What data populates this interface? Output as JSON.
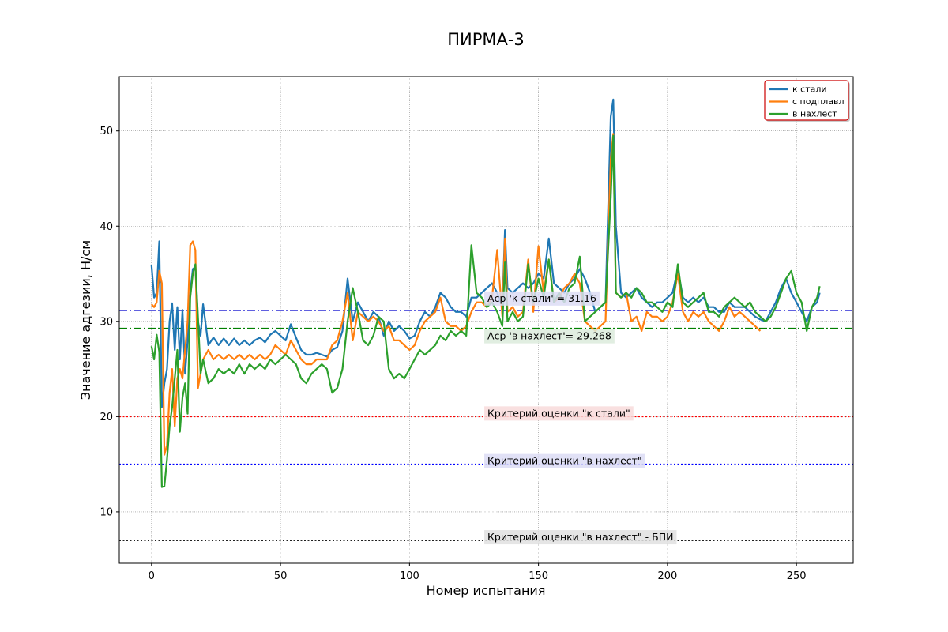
{
  "chart_data": {
    "type": "line",
    "title": "ПИРМА-3",
    "xlabel": "Номер испытания",
    "ylabel": "Значение адгезии, Н/см",
    "xlim": [
      -12.5,
      272
    ],
    "ylim": [
      4.6,
      55.7
    ],
    "xticks": [
      0,
      50,
      100,
      150,
      200,
      250
    ],
    "yticks": [
      10,
      20,
      30,
      40,
      50
    ],
    "grid": true,
    "legend_position": "upper right",
    "series": [
      {
        "name": "к стали",
        "color": "#1f77b4",
        "x": [
          0,
          1,
          2,
          3,
          4,
          5,
          6,
          7,
          8,
          9,
          10,
          11,
          12,
          13,
          14,
          15,
          16,
          17,
          18,
          19,
          20,
          22,
          24,
          26,
          28,
          30,
          32,
          34,
          36,
          38,
          40,
          42,
          44,
          46,
          48,
          50,
          52,
          54,
          56,
          58,
          60,
          62,
          64,
          66,
          68,
          70,
          72,
          74,
          76,
          78,
          80,
          82,
          84,
          86,
          88,
          90,
          92,
          94,
          96,
          98,
          100,
          102,
          104,
          106,
          108,
          110,
          112,
          114,
          116,
          118,
          120,
          122,
          124,
          126,
          128,
          130,
          132,
          134,
          136,
          137,
          138,
          140,
          142,
          144,
          146,
          148,
          150,
          152,
          154,
          156,
          158,
          160,
          162,
          164,
          166,
          168,
          170,
          172,
          174,
          176,
          178,
          179,
          180,
          182,
          184,
          186,
          188,
          190,
          192,
          194,
          196,
          198,
          200,
          202,
          204,
          206,
          208,
          210,
          212,
          214,
          216,
          218,
          220,
          222,
          224,
          226,
          228,
          230,
          232,
          234,
          236,
          238,
          240,
          242,
          244,
          246,
          248,
          250,
          252,
          254,
          256,
          258,
          259
        ],
        "y": [
          35.9,
          32.5,
          33.0,
          38.4,
          21.0,
          23.5,
          25.0,
          30.0,
          31.9,
          27.0,
          31.5,
          26.0,
          31.2,
          24.5,
          28.0,
          33.0,
          35.5,
          35.7,
          30.0,
          28.5,
          31.8,
          27.5,
          28.3,
          27.5,
          28.2,
          27.5,
          28.2,
          27.5,
          28.0,
          27.5,
          28.0,
          28.3,
          27.8,
          28.6,
          29.0,
          28.5,
          28.0,
          29.7,
          28.3,
          27.0,
          26.5,
          26.5,
          26.7,
          26.5,
          26.3,
          27.0,
          27.3,
          29.0,
          34.5,
          30.0,
          32.0,
          31.0,
          30.0,
          31.0,
          30.5,
          28.5,
          30.0,
          29.0,
          29.5,
          29.0,
          28.2,
          28.5,
          30.0,
          31.0,
          30.5,
          31.5,
          33.0,
          32.5,
          31.5,
          31.0,
          31.0,
          30.5,
          32.5,
          32.5,
          33.0,
          33.5,
          34.0,
          33.0,
          31.5,
          39.6,
          33.5,
          33.0,
          33.5,
          34.0,
          33.5,
          34.0,
          35.0,
          34.5,
          38.7,
          34.0,
          33.5,
          33.0,
          34.0,
          34.5,
          35.5,
          34.5,
          33.0,
          31.0,
          31.5,
          32.0,
          51.5,
          53.3,
          40.0,
          33.0,
          32.5,
          33.0,
          33.5,
          32.5,
          32.0,
          31.5,
          32.0,
          32.0,
          32.5,
          33.0,
          35.5,
          32.5,
          32.0,
          32.5,
          32.0,
          32.5,
          31.5,
          31.5,
          31.0,
          31.0,
          32.0,
          31.5,
          31.5,
          31.5,
          31.0,
          30.5,
          30.2,
          30.0,
          31.0,
          32.0,
          33.5,
          34.5,
          33.0,
          32.0,
          31.0,
          30.0,
          31.5,
          32.0,
          33.0
        ],
        "style": "solid"
      },
      {
        "name": "с подплавл",
        "color": "#ff7f0e",
        "x": [
          0,
          1,
          2,
          3,
          4,
          5,
          6,
          7,
          8,
          9,
          10,
          11,
          12,
          13,
          14,
          15,
          16,
          17,
          18,
          19,
          20,
          22,
          24,
          26,
          28,
          30,
          32,
          34,
          36,
          38,
          40,
          42,
          44,
          46,
          48,
          50,
          52,
          54,
          56,
          58,
          60,
          62,
          64,
          66,
          68,
          70,
          72,
          74,
          76,
          78,
          80,
          82,
          84,
          86,
          88,
          90,
          92,
          94,
          96,
          98,
          100,
          102,
          104,
          106,
          108,
          110,
          112,
          114,
          116,
          118,
          120,
          122,
          124,
          126,
          128,
          130,
          132,
          134,
          136,
          137,
          138,
          140,
          142,
          144,
          146,
          148,
          150,
          152,
          154,
          156,
          158,
          160,
          162,
          164,
          166,
          168,
          170,
          172,
          174,
          176,
          178,
          179,
          180,
          182,
          184,
          186,
          188,
          190,
          192,
          194,
          196,
          198,
          200,
          202,
          204,
          206,
          208,
          210,
          212,
          214,
          216,
          218,
          220,
          222,
          224,
          226,
          228,
          230,
          232,
          234,
          236
        ],
        "y": [
          31.8,
          31.5,
          32.0,
          35.3,
          34.0,
          16.0,
          17.0,
          22.5,
          25.0,
          19.0,
          24.0,
          25.0,
          24.0,
          27.0,
          30.0,
          38.0,
          38.4,
          37.5,
          23.0,
          24.5,
          26.0,
          27.0,
          26.0,
          26.5,
          26.0,
          26.5,
          26.0,
          26.5,
          26.0,
          26.5,
          26.0,
          26.5,
          26.0,
          26.5,
          27.5,
          27.0,
          26.5,
          28.0,
          27.0,
          26.0,
          25.5,
          25.5,
          26.0,
          26.0,
          26.0,
          27.5,
          28.0,
          30.0,
          33.0,
          28.0,
          31.0,
          30.5,
          30.0,
          30.5,
          30.0,
          29.0,
          29.5,
          28.0,
          28.0,
          27.5,
          27.0,
          27.5,
          29.0,
          30.0,
          30.5,
          31.0,
          32.5,
          30.0,
          29.5,
          29.5,
          29.0,
          29.5,
          31.0,
          32.0,
          32.0,
          31.5,
          32.5,
          37.5,
          30.5,
          38.7,
          31.0,
          31.5,
          30.5,
          31.0,
          36.5,
          31.0,
          37.9,
          33.0,
          36.5,
          32.0,
          32.5,
          33.5,
          34.0,
          35.0,
          34.0,
          30.0,
          29.5,
          29.0,
          29.5,
          30.0,
          47.0,
          49.7,
          33.0,
          32.5,
          33.0,
          30.0,
          30.5,
          29.0,
          31.0,
          30.5,
          30.5,
          30.0,
          30.5,
          32.0,
          35.0,
          31.0,
          30.0,
          31.0,
          30.5,
          31.0,
          30.0,
          29.5,
          29.0,
          30.0,
          31.5,
          30.5,
          31.0,
          30.5,
          30.0,
          29.5,
          29.0
        ],
        "style": "solid"
      },
      {
        "name": "в нахлест",
        "color": "#2ca02c",
        "x": [
          0,
          1,
          2,
          3,
          4,
          5,
          6,
          7,
          8,
          9,
          10,
          11,
          12,
          13,
          14,
          15,
          16,
          17,
          18,
          19,
          20,
          22,
          24,
          26,
          28,
          30,
          32,
          34,
          36,
          38,
          40,
          42,
          44,
          46,
          48,
          50,
          52,
          54,
          56,
          58,
          60,
          62,
          64,
          66,
          68,
          70,
          72,
          74,
          76,
          78,
          80,
          82,
          84,
          86,
          88,
          90,
          92,
          94,
          96,
          98,
          100,
          102,
          104,
          106,
          108,
          110,
          112,
          114,
          116,
          118,
          120,
          122,
          124,
          126,
          128,
          130,
          132,
          134,
          136,
          137,
          138,
          140,
          142,
          144,
          146,
          148,
          150,
          152,
          154,
          156,
          158,
          160,
          162,
          164,
          166,
          168,
          170,
          172,
          174,
          176,
          178,
          179,
          180,
          182,
          184,
          186,
          188,
          190,
          192,
          194,
          196,
          198,
          200,
          202,
          204,
          206,
          208,
          210,
          212,
          214,
          216,
          218,
          220,
          222,
          224,
          226,
          228,
          230,
          232,
          234,
          236,
          238,
          240,
          242,
          244,
          246,
          248,
          250,
          252,
          254,
          256,
          258,
          259
        ],
        "y": [
          27.4,
          26.0,
          28.6,
          26.8,
          12.6,
          12.7,
          15.5,
          19.0,
          21.0,
          24.0,
          27.0,
          18.4,
          22.0,
          23.5,
          20.3,
          32.5,
          35.0,
          36.0,
          30.5,
          24.5,
          26.0,
          23.5,
          24.0,
          25.0,
          24.5,
          25.0,
          24.5,
          25.5,
          24.5,
          25.5,
          25.0,
          25.5,
          25.0,
          26.0,
          25.5,
          26.0,
          26.5,
          26.0,
          25.5,
          24.0,
          23.5,
          24.5,
          25.0,
          25.5,
          25.0,
          22.5,
          23.0,
          25.0,
          30.0,
          33.5,
          31.0,
          28.0,
          27.5,
          28.5,
          30.5,
          30.0,
          25.0,
          24.0,
          24.5,
          24.0,
          25.0,
          26.0,
          27.0,
          26.5,
          27.0,
          27.5,
          28.5,
          28.0,
          29.0,
          28.5,
          29.0,
          28.5,
          38.0,
          33.0,
          32.5,
          31.5,
          32.0,
          31.0,
          29.5,
          36.2,
          30.0,
          31.0,
          30.0,
          30.5,
          36.0,
          32.0,
          34.5,
          32.5,
          36.5,
          32.0,
          33.0,
          32.0,
          33.5,
          34.0,
          36.8,
          30.0,
          30.5,
          31.0,
          31.5,
          32.0,
          43.0,
          49.5,
          33.0,
          32.5,
          33.0,
          32.5,
          33.5,
          33.0,
          32.0,
          32.0,
          31.5,
          31.0,
          32.0,
          31.5,
          36.0,
          32.0,
          31.5,
          32.0,
          32.5,
          33.0,
          31.0,
          31.0,
          30.5,
          31.5,
          32.0,
          32.5,
          32.0,
          31.5,
          32.0,
          31.0,
          30.5,
          30.0,
          30.5,
          31.5,
          33.0,
          34.5,
          35.3,
          33.0,
          32.0,
          29.0,
          31.5,
          32.5,
          33.7
        ],
        "style": "solid"
      }
    ],
    "hlines": [
      {
        "y": 31.16,
        "color": "#0000cd",
        "style": "dashdot",
        "label": "Аср 'к стали' = 31.16",
        "label_box": "#dcdcf5"
      },
      {
        "y": 29.268,
        "color": "#008000",
        "style": "dashdot",
        "label": "Аср 'в нахлест'= 29.268",
        "label_box": "#dcebdc"
      },
      {
        "y": 20,
        "color": "#ff0000",
        "style": "dotted",
        "label": "Критерий оценки \"к стали\"",
        "label_box": "#f8dada"
      },
      {
        "y": 15,
        "color": "#0000ff",
        "style": "dotted",
        "label": "Критерий оценки \"в нахлест\"",
        "label_box": "#dcdcf5"
      },
      {
        "y": 7,
        "color": "#000000",
        "style": "dotted",
        "label": "Критерий оценки \"в нахлест\" - БПИ",
        "label_box": "#e0e0e0"
      }
    ],
    "annotation_x": 129
  }
}
